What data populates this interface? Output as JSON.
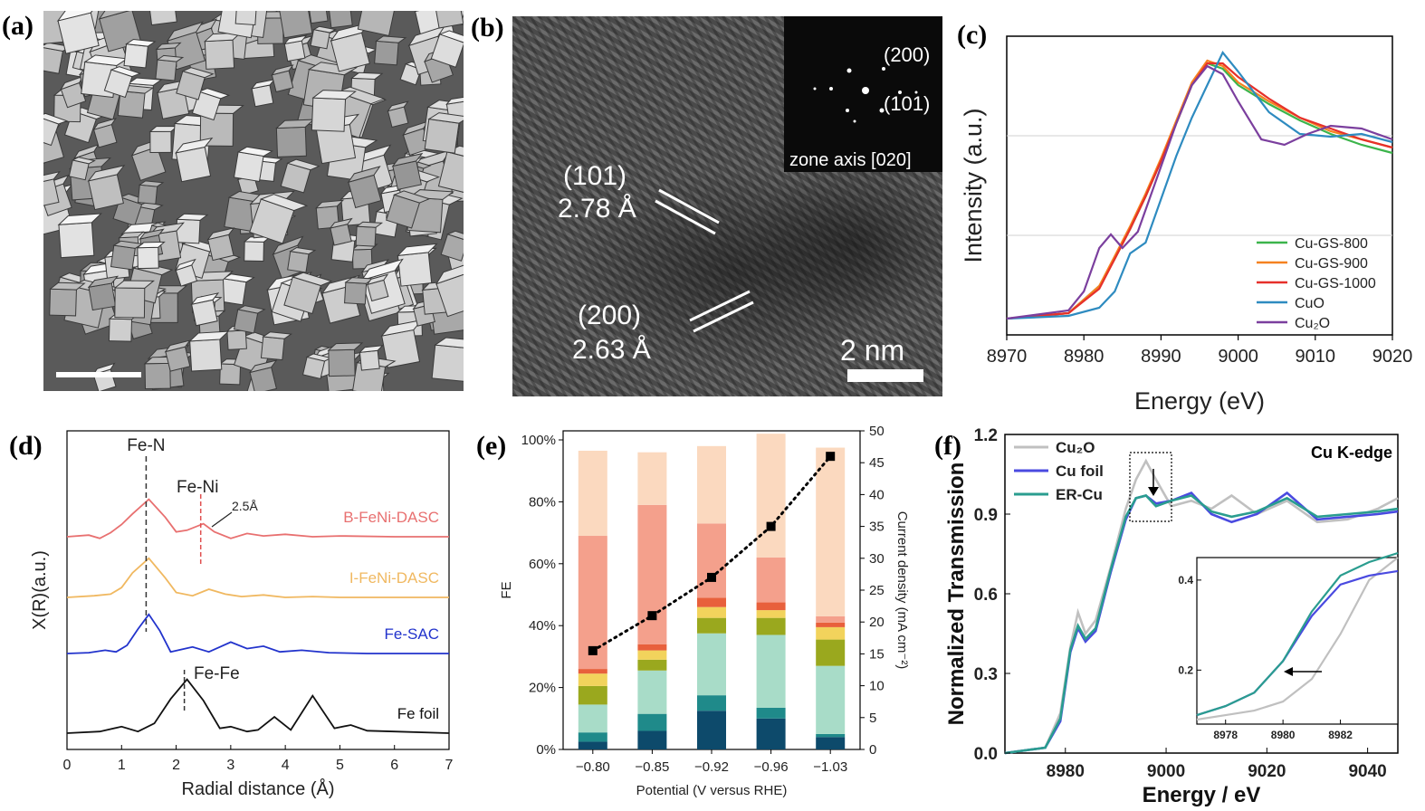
{
  "panel_labels": {
    "a": "(a)",
    "b": "(b)",
    "c": "(c)",
    "d": "(d)",
    "e": "(e)",
    "f": "(f)"
  },
  "panel_b": {
    "fft_labels": [
      "(200)",
      "(101)"
    ],
    "zone_axis": "zone axis [020]",
    "plane1": "(101)",
    "spacing1": "2.78 Å",
    "plane2": "(200)",
    "spacing2": "2.63 Å",
    "scale_bar": "2 nm"
  },
  "colors": {
    "cu_gs_800": "#3cb44b",
    "cu_gs_900": "#f58220",
    "cu_gs_1000": "#e6302a",
    "cuo": "#2e8bc0",
    "cu2o": "#7b3f9e",
    "b_fenidasc": "#e87070",
    "i_fenidasc": "#f0b860",
    "fe_sac": "#2233cc",
    "fe_foil": "#111111",
    "f_cu2o": "#c0c0c0",
    "f_cufoil": "#4a4ae0",
    "f_ercu": "#2a9d8f"
  },
  "chart_data": [
    {
      "id": "c",
      "type": "line",
      "xlabel": "Energy (eV)",
      "ylabel": "Intensity (a.u.)",
      "xlim": [
        8970,
        9020
      ],
      "x_ticks": [
        "8970",
        "8980",
        "8990",
        "9000",
        "9010",
        "9020"
      ],
      "legend_position": "bottom-right",
      "series": [
        {
          "name": "Cu-GS-800",
          "key": "cu_gs_800",
          "x": [
            8970,
            8978,
            8982,
            8984,
            8986,
            8988,
            8990,
            8992,
            8994,
            8996,
            8998,
            9000,
            9004,
            9008,
            9012,
            9016,
            9020
          ],
          "y": [
            0.02,
            0.04,
            0.14,
            0.24,
            0.35,
            0.47,
            0.6,
            0.74,
            0.88,
            0.96,
            0.94,
            0.88,
            0.81,
            0.75,
            0.7,
            0.66,
            0.63
          ]
        },
        {
          "name": "Cu-GS-900",
          "key": "cu_gs_900",
          "x": [
            8970,
            8978,
            8982,
            8984,
            8986,
            8988,
            8990,
            8992,
            8994,
            8996,
            8998,
            9000,
            9004,
            9008,
            9012,
            9016,
            9020
          ],
          "y": [
            0.02,
            0.04,
            0.14,
            0.25,
            0.36,
            0.48,
            0.61,
            0.75,
            0.89,
            0.97,
            0.95,
            0.89,
            0.82,
            0.76,
            0.71,
            0.68,
            0.65
          ]
        },
        {
          "name": "Cu-GS-1000",
          "key": "cu_gs_1000",
          "x": [
            8970,
            8978,
            8982,
            8984,
            8986,
            8988,
            8990,
            8992,
            8994,
            8996,
            8998,
            9000,
            9004,
            9008,
            9012,
            9016,
            9020
          ],
          "y": [
            0.02,
            0.04,
            0.13,
            0.24,
            0.35,
            0.47,
            0.6,
            0.74,
            0.88,
            0.96,
            0.96,
            0.91,
            0.83,
            0.76,
            0.72,
            0.68,
            0.65
          ]
        },
        {
          "name": "CuO",
          "key": "cuo",
          "x": [
            8970,
            8978,
            8982,
            8984,
            8986,
            8988,
            8990,
            8992,
            8994,
            8996,
            8998,
            9000,
            9004,
            9008,
            9012,
            9016,
            9020
          ],
          "y": [
            0.02,
            0.03,
            0.06,
            0.12,
            0.26,
            0.3,
            0.46,
            0.62,
            0.76,
            0.88,
            1.0,
            0.93,
            0.78,
            0.7,
            0.69,
            0.7,
            0.67
          ]
        },
        {
          "name": "Cu₂O",
          "key": "cu2o",
          "x": [
            8970,
            8978,
            8980,
            8982,
            8983.5,
            8985,
            8987,
            8990,
            8992,
            8994,
            8996,
            8998,
            9000,
            9003,
            9006,
            9009,
            9012,
            9016,
            9020
          ],
          "y": [
            0.02,
            0.05,
            0.12,
            0.28,
            0.33,
            0.28,
            0.34,
            0.58,
            0.74,
            0.88,
            0.95,
            0.92,
            0.82,
            0.68,
            0.66,
            0.7,
            0.73,
            0.72,
            0.68
          ]
        }
      ]
    },
    {
      "id": "d",
      "type": "line",
      "xlabel": "Radial distance (Å)",
      "ylabel": "X(R)(a.u.)",
      "xlim": [
        0,
        7
      ],
      "x_ticks": [
        "0",
        "1",
        "2",
        "3",
        "4",
        "5",
        "6",
        "7"
      ],
      "annotations": {
        "fe_n": "Fe-N",
        "fe_ni": "Fe-Ni",
        "fe_ni_dist": "2.5Å",
        "fe_fe": "Fe-Fe"
      },
      "series": [
        {
          "name": "B-FeNi-DASC",
          "key": "b_fenidasc",
          "offset": 3,
          "x": [
            0,
            0.4,
            0.6,
            0.8,
            1.0,
            1.2,
            1.5,
            1.8,
            2.0,
            2.2,
            2.5,
            2.7,
            3.0,
            3.3,
            3.6,
            4.0,
            4.5,
            5.0,
            6.0,
            7.0
          ],
          "y": [
            0,
            0.02,
            -0.02,
            0.05,
            0.15,
            0.28,
            0.46,
            0.24,
            0.06,
            0.08,
            0.16,
            0.06,
            -0.02,
            0.04,
            0.01,
            0.03,
            0.0,
            0.01,
            0.0,
            0.0
          ]
        },
        {
          "name": "I-FeNi-DASC",
          "key": "i_fenidasc",
          "offset": 2,
          "x": [
            0,
            0.5,
            0.8,
            1.0,
            1.2,
            1.5,
            1.8,
            2.0,
            2.3,
            2.6,
            2.9,
            3.2,
            3.6,
            4.0,
            4.5,
            5.0,
            6.0,
            7.0
          ],
          "y": [
            0,
            0.02,
            0.04,
            0.12,
            0.3,
            0.48,
            0.24,
            0.06,
            0.02,
            0.1,
            0.04,
            0.01,
            0.03,
            0.0,
            0.01,
            0.0,
            0.0,
            0.0
          ]
        },
        {
          "name": "Fe-SAC",
          "key": "fe_sac",
          "offset": 1,
          "x": [
            0,
            0.4,
            0.7,
            0.9,
            1.1,
            1.3,
            1.5,
            1.7,
            1.9,
            2.1,
            2.3,
            2.6,
            2.8,
            3.0,
            3.3,
            3.6,
            3.9,
            4.3,
            4.8,
            5.5,
            6.5,
            7.0
          ],
          "y": [
            0,
            0.01,
            0.04,
            0.02,
            0.1,
            0.3,
            0.48,
            0.28,
            0.02,
            0.05,
            0.08,
            0.02,
            0.08,
            0.14,
            0.06,
            0.09,
            0.02,
            0.04,
            0.01,
            0.0,
            0.0,
            0.0
          ]
        },
        {
          "name": "Fe foil",
          "key": "fe_foil",
          "offset": 0,
          "x": [
            0,
            0.6,
            1.0,
            1.3,
            1.6,
            1.9,
            2.2,
            2.5,
            2.8,
            3.0,
            3.3,
            3.5,
            3.8,
            4.1,
            4.5,
            4.9,
            5.2,
            5.5,
            6.0,
            7.0
          ],
          "y": [
            0,
            0.02,
            0.08,
            0.02,
            0.12,
            0.42,
            0.66,
            0.4,
            0.06,
            0.08,
            0.02,
            0.04,
            0.2,
            0.04,
            0.46,
            0.06,
            0.1,
            0.03,
            0.02,
            0.0
          ]
        }
      ]
    },
    {
      "id": "e",
      "type": "bar",
      "xlabel": "Potential (V versus RHE)",
      "ylabel": "FE",
      "y2label": "Current density (mA cm⁻²)",
      "categories": [
        "−0.80",
        "−0.85",
        "−0.92",
        "−0.96",
        "−1.03"
      ],
      "y_ticks": [
        "0%",
        "20%",
        "40%",
        "60%",
        "80%",
        "100%"
      ],
      "y2_ticks": [
        "0",
        "5",
        "10",
        "15",
        "20",
        "25",
        "30",
        "35",
        "40",
        "45",
        "50"
      ],
      "ylim": [
        0,
        100
      ],
      "y2lim": [
        0,
        50
      ],
      "stack_colors": [
        "#0d4a6b",
        "#1f8a8a",
        "#a8dcc8",
        "#9aa81e",
        "#f2d35c",
        "#e8603c",
        "#f4a08c",
        "#fbd9bf"
      ],
      "stacks": [
        [
          2.5,
          3.0,
          9.0,
          6.0,
          4.0,
          1.5,
          43.0,
          27.5
        ],
        [
          6.0,
          5.5,
          14.0,
          3.5,
          3.0,
          2.0,
          45.0,
          17.0
        ],
        [
          12.5,
          5.0,
          20.0,
          5.0,
          3.5,
          3.0,
          24.0,
          25.0
        ],
        [
          10.0,
          3.5,
          23.5,
          5.5,
          2.5,
          2.5,
          14.5,
          40.0
        ],
        [
          4.0,
          1.0,
          22.0,
          8.5,
          4.0,
          1.5,
          2.0,
          54.5
        ]
      ],
      "current_density": [
        15.5,
        21.0,
        27.0,
        35.0,
        46.0
      ]
    },
    {
      "id": "f",
      "type": "line",
      "xlabel": "Energy / eV",
      "ylabel": "Normalized Transmission",
      "title": "Cu K-edge",
      "xlim": [
        8968,
        9046
      ],
      "ylim": [
        0.0,
        1.2
      ],
      "x_ticks": [
        "8980",
        "9000",
        "9020",
        "9040"
      ],
      "y_ticks": [
        "0.0",
        "0.3",
        "0.6",
        "0.9",
        "1.2"
      ],
      "series": [
        {
          "name": "Cu₂O",
          "key": "f_cu2o",
          "x": [
            8968,
            8976,
            8979,
            8981,
            8982.5,
            8984,
            8986,
            8989,
            8992,
            8994,
            8996,
            8998,
            9001,
            9005,
            9009,
            9013,
            9018,
            9024,
            9030,
            9036,
            9042,
            9046
          ],
          "y": [
            0.0,
            0.02,
            0.15,
            0.4,
            0.53,
            0.45,
            0.5,
            0.7,
            0.92,
            1.03,
            1.1,
            1.03,
            0.93,
            0.95,
            0.92,
            0.97,
            0.9,
            0.95,
            0.87,
            0.88,
            0.92,
            0.96
          ]
        },
        {
          "name": "Cu foil",
          "key": "f_cufoil",
          "x": [
            8968,
            8976,
            8979,
            8981,
            8982.5,
            8984,
            8986,
            8989,
            8992,
            8994,
            8996,
            8998,
            9001,
            9005,
            9009,
            9013,
            9018,
            9024,
            9030,
            9036,
            9042,
            9046
          ],
          "y": [
            0.0,
            0.02,
            0.12,
            0.38,
            0.47,
            0.42,
            0.46,
            0.68,
            0.88,
            0.96,
            0.97,
            0.94,
            0.95,
            0.98,
            0.9,
            0.87,
            0.9,
            0.98,
            0.88,
            0.89,
            0.9,
            0.91
          ]
        },
        {
          "name": "ER-Cu",
          "key": "f_ercu",
          "x": [
            8968,
            8976,
            8979,
            8981,
            8982.5,
            8984,
            8986,
            8989,
            8992,
            8994,
            8996,
            8998,
            9001,
            9005,
            9009,
            9013,
            9018,
            9024,
            9030,
            9036,
            9042,
            9046
          ],
          "y": [
            0.0,
            0.02,
            0.13,
            0.39,
            0.48,
            0.43,
            0.47,
            0.69,
            0.89,
            0.96,
            0.97,
            0.93,
            0.95,
            0.97,
            0.91,
            0.89,
            0.91,
            0.96,
            0.89,
            0.9,
            0.91,
            0.92
          ]
        }
      ],
      "inset": {
        "xlim": [
          8977,
          8984
        ],
        "ylim": [
          0.08,
          0.45
        ],
        "x_ticks": [
          "8978",
          "8980",
          "8982"
        ],
        "y_ticks": [
          "0.2",
          "0.4"
        ],
        "series": [
          {
            "key": "f_cu2o",
            "x": [
              8977,
              8978,
              8979,
              8980,
              8981,
              8982,
              8983,
              8984
            ],
            "y": [
              0.09,
              0.1,
              0.11,
              0.13,
              0.18,
              0.28,
              0.4,
              0.45
            ]
          },
          {
            "key": "f_cufoil",
            "x": [
              8977,
              8978,
              8979,
              8980,
              8981,
              8982,
              8983,
              8984
            ],
            "y": [
              0.1,
              0.12,
              0.15,
              0.22,
              0.32,
              0.39,
              0.41,
              0.42
            ]
          },
          {
            "key": "f_ercu",
            "x": [
              8977,
              8978,
              8979,
              8980,
              8981,
              8982,
              8983,
              8984
            ],
            "y": [
              0.1,
              0.12,
              0.15,
              0.22,
              0.33,
              0.41,
              0.44,
              0.46
            ]
          }
        ]
      }
    }
  ]
}
